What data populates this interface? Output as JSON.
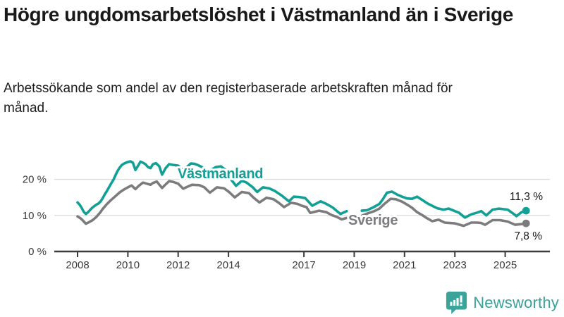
{
  "chart_data": {
    "type": "line",
    "title": "Högre ungdomsarbetslöshet i Västmanland än i Sverige",
    "subtitle": "Arbetssökande som andel av den registerbaserade arbetskraften månad för månad.",
    "xlabel": "",
    "ylabel": "",
    "xlim": [
      2007.1,
      2026.8
    ],
    "ylim": [
      0,
      27
    ],
    "grid": true,
    "legend_position": "inline-labels",
    "x_ticks": [
      2008,
      2010,
      2012,
      2014,
      2017,
      2019,
      2021,
      2023,
      2025
    ],
    "x_tick_labels": [
      "2008",
      "2010",
      "2012",
      "2014",
      "2017",
      "2019",
      "2021",
      "2023",
      "2025"
    ],
    "y_ticks": [
      0,
      10,
      20
    ],
    "y_tick_labels": [
      "0 %",
      "10 %",
      "20 %"
    ],
    "series": [
      {
        "name": "Sverige",
        "color": "#7c7c7f",
        "end_label": "7,8 %",
        "end_value": 7.8,
        "points": [
          [
            2008.0,
            9.7
          ],
          [
            2008.1,
            9.3
          ],
          [
            2008.2,
            8.7
          ],
          [
            2008.33,
            7.7
          ],
          [
            2008.45,
            8.1
          ],
          [
            2008.6,
            8.7
          ],
          [
            2008.75,
            9.6
          ],
          [
            2008.9,
            10.8
          ],
          [
            2009.0,
            11.8
          ],
          [
            2009.15,
            13.0
          ],
          [
            2009.32,
            14.2
          ],
          [
            2009.5,
            15.3
          ],
          [
            2009.68,
            16.4
          ],
          [
            2009.85,
            17.2
          ],
          [
            2010.0,
            17.8
          ],
          [
            2010.15,
            18.3
          ],
          [
            2010.3,
            17.3
          ],
          [
            2010.45,
            18.3
          ],
          [
            2010.6,
            19.1
          ],
          [
            2010.75,
            18.8
          ],
          [
            2010.9,
            18.5
          ],
          [
            2011.0,
            19.0
          ],
          [
            2011.15,
            19.4
          ],
          [
            2011.36,
            17.6
          ],
          [
            2011.5,
            18.6
          ],
          [
            2011.64,
            19.5
          ],
          [
            2011.8,
            19.3
          ],
          [
            2012.0,
            18.8
          ],
          [
            2012.2,
            17.4
          ],
          [
            2012.35,
            17.9
          ],
          [
            2012.55,
            18.5
          ],
          [
            2012.84,
            18.4
          ],
          [
            2013.04,
            17.8
          ],
          [
            2013.26,
            16.3
          ],
          [
            2013.54,
            17.8
          ],
          [
            2013.83,
            17.5
          ],
          [
            2014.02,
            16.5
          ],
          [
            2014.25,
            15.0
          ],
          [
            2014.53,
            16.5
          ],
          [
            2014.81,
            16.2
          ],
          [
            2015.0,
            14.9
          ],
          [
            2015.23,
            13.6
          ],
          [
            2015.51,
            14.9
          ],
          [
            2015.79,
            14.5
          ],
          [
            2016.0,
            13.5
          ],
          [
            2016.21,
            12.3
          ],
          [
            2016.49,
            13.5
          ],
          [
            2016.74,
            13.2
          ],
          [
            2016.91,
            12.7
          ],
          [
            2017.1,
            12.3
          ],
          [
            2017.25,
            10.7
          ],
          [
            2017.6,
            11.3
          ],
          [
            2017.89,
            10.9
          ],
          [
            2018.1,
            10.1
          ],
          [
            2018.3,
            9.6
          ],
          [
            2018.5,
            8.9
          ],
          [
            2018.7,
            9.3
          ],
          null,
          [
            2019.3,
            9.9
          ],
          [
            2019.55,
            10.6
          ],
          [
            2019.8,
            11.2
          ],
          [
            2020.0,
            11.9
          ],
          [
            2020.2,
            13.2
          ],
          [
            2020.45,
            14.6
          ],
          [
            2020.65,
            14.5
          ],
          [
            2020.9,
            13.8
          ],
          [
            2021.1,
            13.0
          ],
          [
            2021.3,
            12.1
          ],
          [
            2021.5,
            10.9
          ],
          [
            2021.7,
            10.1
          ],
          [
            2021.85,
            9.4
          ],
          [
            2022.1,
            8.4
          ],
          [
            2022.35,
            8.8
          ],
          [
            2022.6,
            8.0
          ],
          [
            2022.8,
            7.9
          ],
          [
            2023.0,
            7.8
          ],
          [
            2023.35,
            7.1
          ],
          [
            2023.65,
            8.0
          ],
          [
            2023.9,
            8.0
          ],
          [
            2024.05,
            7.9
          ],
          [
            2024.2,
            7.4
          ],
          [
            2024.5,
            8.7
          ],
          [
            2024.8,
            8.7
          ],
          [
            2025.1,
            8.3
          ],
          [
            2025.4,
            7.4
          ],
          [
            2025.65,
            7.6
          ],
          [
            2025.83,
            7.8
          ]
        ]
      },
      {
        "name": "Västmanland",
        "color": "#11a095",
        "end_label": "11,3 %",
        "end_value": 11.3,
        "points": [
          [
            2008.0,
            13.6
          ],
          [
            2008.08,
            13.0
          ],
          [
            2008.17,
            12.0
          ],
          [
            2008.25,
            11.0
          ],
          [
            2008.33,
            10.4
          ],
          [
            2008.42,
            10.9
          ],
          [
            2008.5,
            11.5
          ],
          [
            2008.58,
            12.1
          ],
          [
            2008.67,
            12.6
          ],
          [
            2008.75,
            13.0
          ],
          [
            2008.83,
            13.3
          ],
          [
            2008.92,
            13.9
          ],
          [
            2009.0,
            14.8
          ],
          [
            2009.08,
            15.8
          ],
          [
            2009.17,
            16.8
          ],
          [
            2009.25,
            17.8
          ],
          [
            2009.33,
            18.8
          ],
          [
            2009.42,
            19.8
          ],
          [
            2009.5,
            21.0
          ],
          [
            2009.58,
            22.2
          ],
          [
            2009.67,
            23.2
          ],
          [
            2009.75,
            23.9
          ],
          [
            2009.83,
            24.3
          ],
          [
            2009.92,
            24.6
          ],
          [
            2010.0,
            24.8
          ],
          [
            2010.1,
            25.0
          ],
          [
            2010.2,
            24.6
          ],
          [
            2010.3,
            22.6
          ],
          [
            2010.42,
            23.9
          ],
          [
            2010.5,
            24.9
          ],
          [
            2010.6,
            24.6
          ],
          [
            2010.7,
            24.2
          ],
          [
            2010.8,
            23.4
          ],
          [
            2010.9,
            23.1
          ],
          [
            2011.0,
            24.2
          ],
          [
            2011.12,
            24.5
          ],
          [
            2011.25,
            23.6
          ],
          [
            2011.36,
            21.3
          ],
          [
            2011.5,
            23.1
          ],
          [
            2011.64,
            24.2
          ],
          [
            2011.8,
            24.0
          ],
          [
            2011.9,
            23.9
          ],
          [
            2012.0,
            23.8
          ],
          [
            2012.1,
            23.1
          ],
          [
            2012.2,
            22.4
          ],
          [
            2012.35,
            23.4
          ],
          [
            2012.5,
            24.4
          ],
          [
            2012.65,
            24.3
          ],
          [
            2012.8,
            23.9
          ],
          [
            2013.0,
            23.2
          ],
          [
            2013.2,
            21.8
          ],
          [
            2013.35,
            22.8
          ],
          [
            2013.5,
            23.4
          ],
          [
            2013.7,
            23.6
          ],
          [
            2013.85,
            22.8
          ],
          [
            2014.0,
            21.8
          ],
          [
            2014.11,
            19.9
          ],
          [
            2014.3,
            18.2
          ],
          [
            2014.53,
            19.6
          ],
          [
            2014.72,
            19.1
          ],
          [
            2014.95,
            17.9
          ],
          [
            2015.14,
            16.5
          ],
          [
            2015.37,
            17.8
          ],
          [
            2015.62,
            17.5
          ],
          [
            2015.84,
            16.8
          ],
          [
            2016.12,
            15.5
          ],
          [
            2016.4,
            13.9
          ],
          [
            2016.6,
            15.2
          ],
          [
            2016.82,
            15.1
          ],
          [
            2017.05,
            14.8
          ],
          [
            2017.33,
            12.7
          ],
          [
            2017.66,
            13.9
          ],
          [
            2017.89,
            13.2
          ],
          [
            2018.14,
            12.2
          ],
          [
            2018.45,
            10.4
          ],
          [
            2018.7,
            11.2
          ],
          null,
          [
            2019.3,
            11.3
          ],
          [
            2019.5,
            11.4
          ],
          [
            2019.75,
            12.2
          ],
          [
            2020.0,
            13.2
          ],
          [
            2020.15,
            14.6
          ],
          [
            2020.3,
            16.3
          ],
          [
            2020.5,
            16.6
          ],
          [
            2020.7,
            15.8
          ],
          [
            2020.9,
            15.2
          ],
          [
            2021.1,
            14.7
          ],
          [
            2021.3,
            14.6
          ],
          [
            2021.5,
            15.2
          ],
          [
            2021.7,
            14.3
          ],
          [
            2021.85,
            13.6
          ],
          [
            2022.0,
            13.0
          ],
          [
            2022.3,
            12.0
          ],
          [
            2022.55,
            11.6
          ],
          [
            2022.75,
            11.9
          ],
          [
            2023.0,
            11.2
          ],
          [
            2023.15,
            10.8
          ],
          [
            2023.4,
            9.4
          ],
          [
            2023.65,
            10.3
          ],
          [
            2023.9,
            10.8
          ],
          [
            2024.05,
            11.2
          ],
          [
            2024.25,
            10.0
          ],
          [
            2024.5,
            11.6
          ],
          [
            2024.75,
            11.9
          ],
          [
            2025.1,
            11.6
          ],
          [
            2025.3,
            10.6
          ],
          [
            2025.45,
            9.8
          ],
          [
            2025.65,
            10.9
          ],
          [
            2025.83,
            11.3
          ]
        ]
      }
    ]
  },
  "footer": {
    "brand": "Newsworthy",
    "brand_color": "#38a29a",
    "icon": "bar-chart-speech-bubble-icon"
  }
}
